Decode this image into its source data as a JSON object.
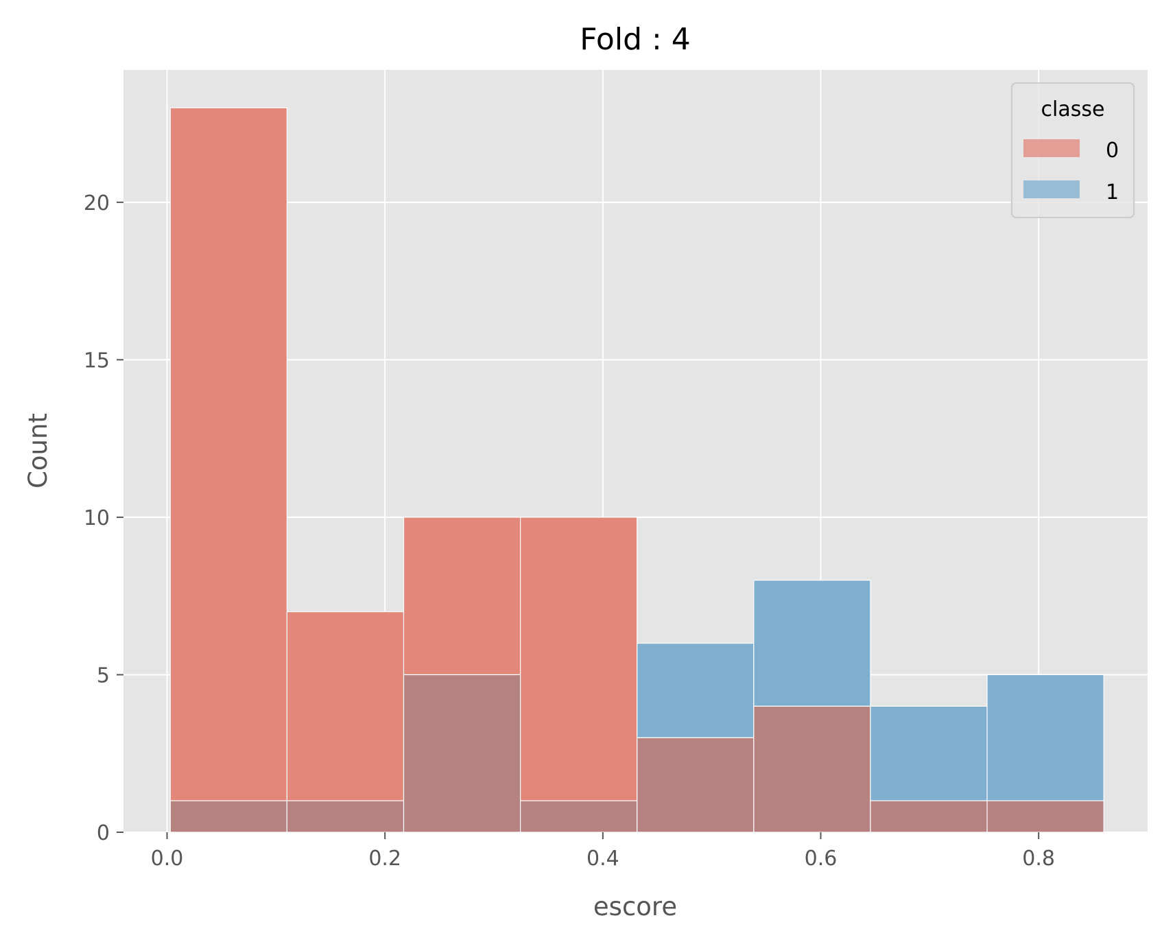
{
  "chart_data": {
    "type": "bar",
    "title": "Fold : 4",
    "xlabel": "escore",
    "ylabel": "Count",
    "xlim": [
      -0.04,
      0.9
    ],
    "ylim": [
      0,
      24.2
    ],
    "xticks": [
      0.0,
      0.2,
      0.4,
      0.6,
      0.8
    ],
    "xtick_labels": [
      "0.0",
      "0.2",
      "0.4",
      "0.6",
      "0.8"
    ],
    "yticks": [
      0,
      5,
      10,
      15,
      20
    ],
    "ytick_labels": [
      "0",
      "5",
      "10",
      "15",
      "20"
    ],
    "grid": true,
    "legend_title": "classe",
    "legend_position": "top-right",
    "bin_edges": [
      0.003,
      0.1101,
      0.2172,
      0.3243,
      0.4314,
      0.5385,
      0.6456,
      0.7527,
      0.8598
    ],
    "series": [
      {
        "name": "0",
        "color": "#E2877A",
        "values": [
          23,
          7,
          10,
          10,
          3,
          4,
          1,
          1
        ]
      },
      {
        "name": "1",
        "color": "#7FAECF",
        "values": [
          1,
          1,
          5,
          1,
          6,
          8,
          4,
          5
        ]
      }
    ],
    "overlap_color": "#B58280"
  }
}
